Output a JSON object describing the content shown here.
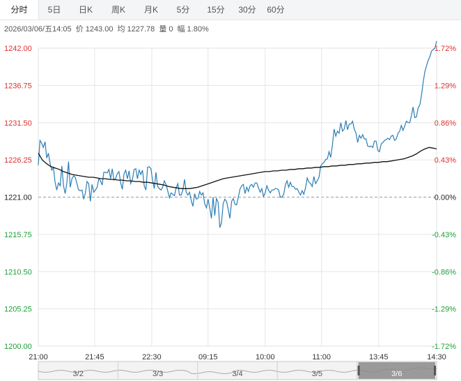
{
  "tabs": [
    {
      "label": "分时",
      "active": true
    },
    {
      "label": "5日",
      "active": false
    },
    {
      "label": "日K",
      "active": false
    },
    {
      "label": "周K",
      "active": false
    },
    {
      "label": "月K",
      "active": false
    },
    {
      "label": "5分",
      "active": false
    },
    {
      "label": "15分",
      "active": false
    },
    {
      "label": "30分",
      "active": false
    },
    {
      "label": "60分",
      "active": false
    }
  ],
  "info": {
    "datetime": "2026/03/06/五14:05",
    "price_label": "价",
    "price": "1243.00",
    "avg_label": "均",
    "avg": "1227.78",
    "vol_label": "量",
    "vol": "0",
    "change_label": "幅",
    "change": "1.80%"
  },
  "colors": {
    "price_line": "#2a7db5",
    "avg_line": "#111111",
    "up": "#e0302f",
    "down": "#1f9e3a",
    "baseline_text": "#222222",
    "grid": "#e6e6e6",
    "baseline": "#999999"
  },
  "chart_data": {
    "type": "line",
    "prev_close": 1221.0,
    "ylim": [
      1200.0,
      1242.0
    ],
    "y_ticks": [
      "1242.00",
      "1236.75",
      "1231.50",
      "1226.25",
      "1221.00",
      "1215.75",
      "1210.50",
      "1205.25",
      "1200.00"
    ],
    "pct_ticks": [
      "1.72%",
      "1.29%",
      "0.86%",
      "0.43%",
      "0.00%",
      "-0.43%",
      "-0.86%",
      "-1.29%",
      "-1.72%"
    ],
    "x_ticks": [
      "21:00",
      "21:45",
      "22:30",
      "09:15",
      "10:00",
      "11:00",
      "13:45",
      "14:30"
    ],
    "series": [
      {
        "role": "price",
        "x": [
          0,
          2,
          4,
          6,
          8,
          10,
          12,
          14,
          16,
          18,
          20,
          22,
          24,
          26,
          28,
          30,
          32,
          34,
          36,
          38,
          40,
          42,
          44,
          46,
          48,
          50,
          52,
          54,
          56,
          58,
          60,
          62,
          64,
          66,
          68,
          70,
          72,
          74,
          76,
          78,
          80,
          82,
          84,
          86,
          88,
          90,
          92,
          94,
          96,
          98,
          100,
          102,
          104,
          106,
          108,
          110,
          112,
          114,
          116,
          118,
          120,
          122,
          124,
          126,
          128,
          130,
          132,
          134,
          136,
          138,
          140,
          142,
          144,
          146,
          148,
          150,
          152,
          154,
          156,
          158,
          160,
          162,
          164,
          166,
          168,
          170,
          172,
          174,
          176,
          178,
          180,
          182,
          184,
          186,
          188,
          190,
          192,
          194,
          196,
          198,
          200,
          202,
          204,
          206,
          208,
          210,
          212,
          214,
          216,
          218,
          220,
          222,
          224,
          226,
          228,
          230,
          232,
          234,
          236,
          238,
          240,
          242,
          244,
          246,
          248,
          250,
          252,
          254,
          256,
          258,
          260,
          262,
          264,
          266,
          268,
          270,
          272,
          274,
          276,
          278,
          280,
          282,
          284,
          286,
          288,
          290,
          292,
          294,
          296,
          298,
          300,
          302,
          304,
          306,
          308,
          310,
          312,
          314,
          316,
          318,
          320,
          322,
          324,
          326,
          328,
          330,
          332,
          334,
          336,
          338,
          340,
          342,
          344,
          346,
          348,
          350,
          352,
          354,
          356,
          358,
          360,
          362,
          364,
          366,
          368,
          370,
          372,
          374,
          376,
          378,
          380,
          382,
          384,
          386,
          388,
          390,
          392,
          394,
          396,
          398,
          400,
          402,
          404,
          406,
          408,
          410,
          412,
          414,
          416,
          418,
          420,
          422,
          424,
          426,
          428,
          430,
          432,
          434,
          436,
          438,
          440,
          442,
          444,
          446,
          448,
          450,
          452,
          454,
          456,
          458,
          460,
          462,
          464,
          466,
          468,
          470,
          472,
          474
        ],
        "values": [
          1225.5,
          1229.0,
          1228.6,
          1228.0,
          1228.8,
          1226.5,
          1227.2,
          1225.8,
          1224.8,
          1225.2,
          1223.1,
          1222.0,
          1223.0,
          1222.6,
          1225.4,
          1222.6,
          1221.5,
          1223.0,
          1226.0,
          1222.4,
          1223.6,
          1224.0,
          1223.8,
          1222.9,
          1222.0,
          1221.9,
          1222.0,
          1220.7,
          1221.6,
          1223.2,
          1222.9,
          1220.4,
          1222.8,
          1221.7,
          1222.0,
          1222.4,
          1223.6,
          1223.3,
          1222.7,
          1224.5,
          1224.5,
          1224.4,
          1224.9,
          1223.6,
          1225.0,
          1223.4,
          1223.6,
          1224.3,
          1224.6,
          1223.0,
          1222.1,
          1224.3,
          1224.8,
          1223.6,
          1224.7,
          1222.9,
          1223.5,
          1224.9,
          1225.0,
          1223.6,
          1224.8,
          1224.2,
          1224.8,
          1222.6,
          1222.0,
          1225.2,
          1225.3,
          1225.0,
          1223.4,
          1222.2,
          1224.5,
          1222.5,
          1222.2,
          1222.0,
          1222.4,
          1223.3,
          1222.8,
          1221.9,
          1220.9,
          1221.6,
          1221.4,
          1221.2,
          1222.3,
          1222.9,
          1221.3,
          1221.3,
          1222.0,
          1223.5,
          1221.7,
          1221.3,
          1221.7,
          1220.5,
          1219.7,
          1221.5,
          1220.7,
          1220.8,
          1221.8,
          1221.3,
          1221.6,
          1220.1,
          1219.5,
          1220.7,
          1219.5,
          1218.0,
          1221.0,
          1218.4,
          1220.8,
          1220.3,
          1216.7,
          1217.4,
          1220.1,
          1220.7,
          1220.4,
          1219.3,
          1218.0,
          1220.4,
          1220.8,
          1220.0,
          1219.9,
          1221.0,
          1222.1,
          1222.6,
          1222.8,
          1221.5,
          1222.4,
          1221.8,
          1222.6,
          1222.8,
          1222.4,
          1223.0,
          1223.0,
          1222.3,
          1221.7,
          1222.2,
          1221.1,
          1221.6,
          1222.6,
          1222.0,
          1221.6,
          1222.0,
          1222.0,
          1222.2,
          1222.2,
          1222.0,
          1221.0,
          1221.0,
          1221.4,
          1222.7,
          1223.3,
          1222.4,
          1223.1,
          1222.5,
          1222.5,
          1222.1,
          1222.2,
          1221.7,
          1221.3,
          1221.9,
          1221.4,
          1222.3,
          1223.7,
          1223.1,
          1222.9,
          1222.5,
          1223.9,
          1222.9,
          1223.3,
          1223.8,
          1225.4,
          1225.7,
          1225.9,
          1226.3,
          1226.4,
          1227.4,
          1226.6,
          1228.4,
          1230.6,
          1229.6,
          1230.3,
          1230.0,
          1231.5,
          1230.3,
          1230.6,
          1231.8,
          1230.5,
          1231.3,
          1231.3,
          1231.7,
          1230.6,
          1230.0,
          1228.7,
          1229.7,
          1229.3,
          1229.8,
          1229.2,
          1229.2,
          1228.2,
          1228.1,
          1228.2,
          1228.0,
          1228.9,
          1228.9,
          1227.6,
          1227.4,
          1228.5,
          1228.7,
          1229.0,
          1229.1,
          1229.3,
          1229.1,
          1229.6,
          1229.7,
          1229.0,
          1229.2,
          1230.0,
          1230.3,
          1231.1,
          1230.4,
          1231.0,
          1231.7,
          1231.5,
          1231.5,
          1232.5,
          1233.7,
          1232.2,
          1232.3,
          1233.6,
          1234.0,
          1235.4,
          1237.2,
          1238.7,
          1239.5,
          1240.3,
          1240.8,
          1241.6,
          1241.8,
          1242.0,
          1243.0
        ]
      },
      {
        "role": "average",
        "x": [
          0,
          5,
          10,
          15,
          20,
          25,
          30,
          35,
          40,
          45,
          50,
          55,
          60,
          65,
          70,
          75,
          80,
          85,
          90,
          95,
          100,
          105,
          110,
          115,
          120,
          125,
          130,
          135,
          140,
          145,
          150,
          155,
          160,
          165,
          170,
          175,
          180,
          185,
          190,
          195,
          200,
          205,
          210,
          215,
          220,
          225,
          230,
          235,
          240,
          245,
          250,
          255,
          260,
          265,
          270,
          275,
          280,
          285,
          290,
          295,
          300,
          305,
          310,
          315,
          320,
          325,
          330,
          335,
          340,
          345,
          350,
          355,
          360,
          365,
          370,
          375,
          380,
          385,
          390,
          395,
          400,
          405,
          410,
          415,
          420,
          425,
          430,
          435,
          440,
          445,
          450,
          455,
          460,
          465,
          470,
          474
        ],
        "values": [
          1227.2,
          1226.2,
          1225.7,
          1225.3,
          1225.1,
          1224.9,
          1224.6,
          1224.4,
          1224.2,
          1224.1,
          1224.0,
          1223.9,
          1223.8,
          1223.8,
          1223.7,
          1223.6,
          1223.6,
          1223.5,
          1223.5,
          1223.4,
          1223.4,
          1223.3,
          1223.3,
          1223.2,
          1223.2,
          1223.1,
          1223.1,
          1223.0,
          1222.9,
          1222.8,
          1222.7,
          1222.5,
          1222.4,
          1222.3,
          1222.2,
          1222.2,
          1222.2,
          1222.3,
          1222.4,
          1222.6,
          1222.8,
          1223.0,
          1223.2,
          1223.4,
          1223.6,
          1223.7,
          1223.8,
          1223.9,
          1224.0,
          1224.1,
          1224.2,
          1224.3,
          1224.4,
          1224.5,
          1224.6,
          1224.6,
          1224.7,
          1224.7,
          1224.8,
          1224.8,
          1224.9,
          1224.9,
          1225.0,
          1225.0,
          1225.1,
          1225.1,
          1225.2,
          1225.2,
          1225.3,
          1225.3,
          1225.4,
          1225.4,
          1225.5,
          1225.5,
          1225.6,
          1225.6,
          1225.7,
          1225.7,
          1225.8,
          1225.8,
          1225.9,
          1225.9,
          1226.0,
          1226.0,
          1226.1,
          1226.2,
          1226.3,
          1226.4,
          1226.6,
          1226.8,
          1227.1,
          1227.5,
          1227.8,
          1228.0,
          1227.9,
          1227.8
        ]
      }
    ],
    "navigator": {
      "labels": [
        "3/2",
        "3/3",
        "3/4",
        "3/5",
        "3/6"
      ],
      "selected": "3/6"
    }
  }
}
